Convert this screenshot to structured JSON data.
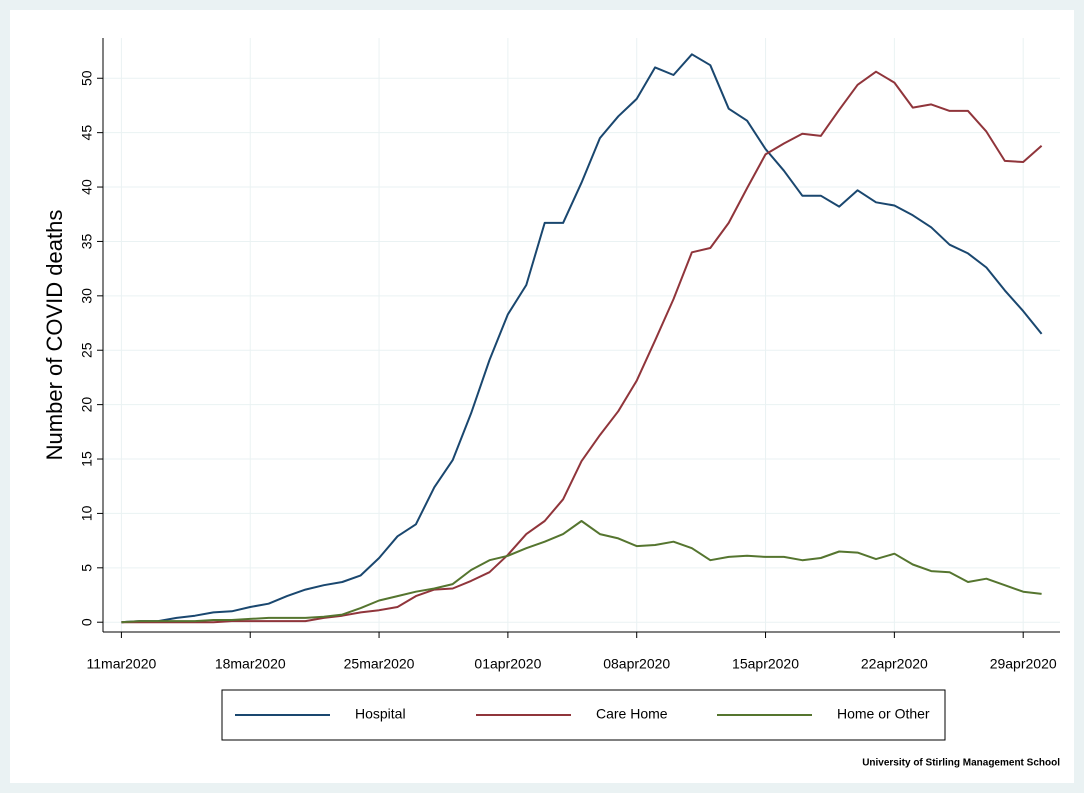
{
  "chart_data": {
    "type": "line",
    "y_label": "Number of COVID deaths",
    "note": "University of Stirling Management School",
    "x": [
      "2020-03-11",
      "2020-03-12",
      "2020-03-13",
      "2020-03-14",
      "2020-03-15",
      "2020-03-16",
      "2020-03-17",
      "2020-03-18",
      "2020-03-19",
      "2020-03-20",
      "2020-03-21",
      "2020-03-22",
      "2020-03-23",
      "2020-03-24",
      "2020-03-25",
      "2020-03-26",
      "2020-03-27",
      "2020-03-28",
      "2020-03-29",
      "2020-03-30",
      "2020-03-31",
      "2020-04-01",
      "2020-04-02",
      "2020-04-03",
      "2020-04-04",
      "2020-04-05",
      "2020-04-06",
      "2020-04-07",
      "2020-04-08",
      "2020-04-09",
      "2020-04-10",
      "2020-04-11",
      "2020-04-12",
      "2020-04-13",
      "2020-04-14",
      "2020-04-15",
      "2020-04-16",
      "2020-04-17",
      "2020-04-18",
      "2020-04-19",
      "2020-04-20",
      "2020-04-21",
      "2020-04-22",
      "2020-04-23",
      "2020-04-24",
      "2020-04-25",
      "2020-04-26",
      "2020-04-27",
      "2020-04-28",
      "2020-04-29",
      "2020-04-30"
    ],
    "series": [
      {
        "name": "Hospital",
        "color": "#1a476f",
        "values": [
          0,
          0.1,
          0.1,
          0.4,
          0.6,
          0.9,
          1.0,
          1.4,
          1.7,
          2.4,
          3.0,
          3.4,
          3.7,
          4.3,
          5.9,
          7.9,
          9.0,
          12.4,
          14.9,
          19.2,
          24.1,
          28.3,
          31.0,
          36.7,
          36.7,
          40.4,
          44.5,
          46.5,
          48.1,
          51.0,
          50.3,
          52.2,
          51.2,
          47.2,
          46.1,
          43.5,
          41.5,
          39.2,
          39.2,
          38.2,
          39.7,
          38.6,
          38.3,
          37.4,
          36.3,
          34.7,
          33.9,
          32.6,
          30.5,
          28.6,
          26.5
        ]
      },
      {
        "name": "Care Home",
        "color": "#90353b",
        "values": [
          0,
          0,
          0,
          0,
          0,
          0,
          0.1,
          0.1,
          0.1,
          0.1,
          0.1,
          0.4,
          0.6,
          0.9,
          1.1,
          1.4,
          2.4,
          3.0,
          3.1,
          3.8,
          4.6,
          6.2,
          8.1,
          9.3,
          11.3,
          14.8,
          17.2,
          19.4,
          22.2,
          25.9,
          29.7,
          34.0,
          34.4,
          36.7,
          39.9,
          43.0,
          44.0,
          44.9,
          44.7,
          47.1,
          49.4,
          50.6,
          49.6,
          47.3,
          47.6,
          47.0,
          47.0,
          45.1,
          42.4,
          42.3,
          43.8
        ]
      },
      {
        "name": "Home or Other",
        "color": "#55752f",
        "values": [
          0,
          0.1,
          0.1,
          0.1,
          0.1,
          0.2,
          0.2,
          0.3,
          0.4,
          0.4,
          0.4,
          0.5,
          0.7,
          1.3,
          2.0,
          2.4,
          2.8,
          3.1,
          3.5,
          4.8,
          5.7,
          6.1,
          6.8,
          7.4,
          8.1,
          9.3,
          8.1,
          7.7,
          7.0,
          7.1,
          7.4,
          6.8,
          5.7,
          6.0,
          6.1,
          6.0,
          6.0,
          5.7,
          5.9,
          6.5,
          6.4,
          5.8,
          6.3,
          5.3,
          4.7,
          4.6,
          3.7,
          4.0,
          3.4,
          2.8,
          2.6
        ]
      }
    ],
    "xlim": [
      "2020-03-10",
      "2020-05-01"
    ],
    "xticks": [
      {
        "value": "2020-03-11",
        "label": "11mar2020"
      },
      {
        "value": "2020-03-18",
        "label": "18mar2020"
      },
      {
        "value": "2020-03-25",
        "label": "25mar2020"
      },
      {
        "value": "2020-04-01",
        "label": "01apr2020"
      },
      {
        "value": "2020-04-08",
        "label": "08apr2020"
      },
      {
        "value": "2020-04-15",
        "label": "15apr2020"
      },
      {
        "value": "2020-04-22",
        "label": "22apr2020"
      },
      {
        "value": "2020-04-29",
        "label": "29apr2020"
      }
    ],
    "ylim": [
      -0.9,
      53.7
    ],
    "yticks": [
      0,
      5,
      10,
      15,
      20,
      25,
      30,
      35,
      40,
      45,
      50
    ],
    "grid": true,
    "legend_position": "bottom"
  }
}
